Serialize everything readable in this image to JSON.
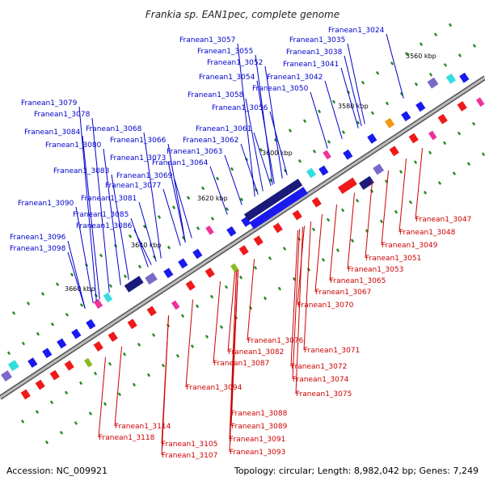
{
  "title": "Frankia sp. EAN1pec, complete genome",
  "footer": {
    "accession": "Accession: NC_009921",
    "summary": "Topology: circular; Length: 8,982,042 bp; Genes: 7,249"
  },
  "ticks": [
    "3560 kbp",
    "3580 kbp",
    "3600 kbp",
    "3620 kbp",
    "3640 kbp",
    "3660 kbp"
  ],
  "upper_labels": [
    "Franean1_3024",
    "Franean1_3035",
    "Franean1_3038",
    "Franean1_3041",
    "Franean1_3042",
    "Franean1_3050",
    "Franean1_3052",
    "Franean1_3054",
    "Franean1_3055",
    "Franean1_3056",
    "Franean1_3057",
    "Franean1_3058",
    "Franean1_3061",
    "Franean1_3062",
    "Franean1_3063",
    "Franean1_3064",
    "Franean1_3066",
    "Franean1_3068",
    "Franean1_3069",
    "Franean1_3073",
    "Franean1_3077",
    "Franean1_3078",
    "Franean1_3079",
    "Franean1_3080",
    "Franean1_3081",
    "Franean1_3083",
    "Franean1_3084",
    "Franean1_3085",
    "Franean1_3086",
    "Franean1_3090",
    "Franean1_3096",
    "Franean1_3098"
  ],
  "lower_labels": [
    "Franean1_3047",
    "Franean1_3048",
    "Franean1_3049",
    "Franean1_3051",
    "Franean1_3053",
    "Franean1_3065",
    "Franean1_3067",
    "Franean1_3070",
    "Franean1_3071",
    "Franean1_3072",
    "Franean1_3074",
    "Franean1_3075",
    "Franean1_3076",
    "Franean1_3082",
    "Franean1_3087",
    "Franean1_3088",
    "Franean1_3089",
    "Franean1_3091",
    "Franean1_3093",
    "Franean1_3094",
    "Franean1_3105",
    "Franean1_3107",
    "Franean1_3114",
    "Franean1_3118"
  ],
  "colors": {
    "forward_gene": "#1a1aee",
    "reverse_gene": "#ee1a1a",
    "dark_gene": "#1a1a7a",
    "purple_gene": "#7b68c8",
    "pink_gene": "#ee3399",
    "cyan_gene": "#33dddd",
    "orange_gene": "#ee9911",
    "green_gene": "#88bb22",
    "backbone": "#8a8a8a",
    "green_tick": "#228822",
    "label_blue": "#0000cc",
    "label_red": "#cc0000"
  }
}
